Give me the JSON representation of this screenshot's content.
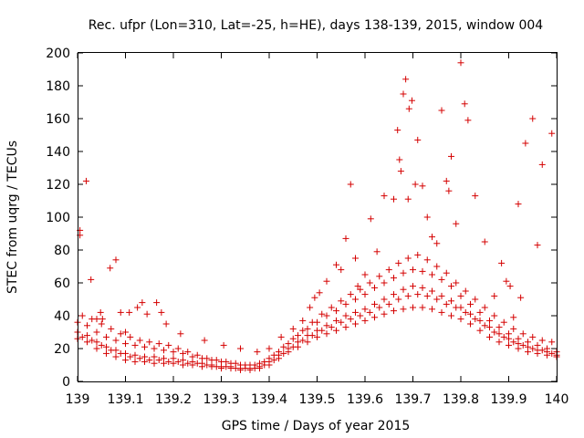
{
  "chart_data": {
    "type": "scatter",
    "title": "Rec. ufpr (Lon=310, Lat=-25, h=HE), days 138-139, 2015, window 004",
    "xlabel": "GPS time / Days of year 2015",
    "ylabel": "STEC from uqrg / TECUs",
    "xlim": [
      139,
      140
    ],
    "ylim": [
      0,
      200
    ],
    "x_ticks": [
      "139",
      "139.1",
      "139.2",
      "139.3",
      "139.4",
      "139.5",
      "139.6",
      "139.7",
      "139.8",
      "139.9",
      "140"
    ],
    "y_ticks": [
      "0",
      "20",
      "40",
      "60",
      "80",
      "100",
      "120",
      "140",
      "160",
      "180",
      "200"
    ],
    "grid": false,
    "marker_color": "#d40000",
    "series": [
      {
        "x": [
          139.005,
          139.005,
          139.018,
          139.028,
          139.04,
          139.048,
          139.068,
          139.08,
          139.052,
          139.09,
          139.1,
          139.108,
          139.125,
          139.135,
          139.145,
          139.165,
          139.175,
          139.185,
          139.215,
          139.265,
          139.305,
          139.34,
          139.375,
          139.4,
          139.425,
          139.45,
          139.47,
          139.485,
          139.495,
          139.505,
          139.52,
          139.54,
          139.55,
          139.56,
          139.57,
          139.58,
          139.585,
          139.6,
          139.612,
          139.625,
          139.64,
          139.66,
          139.668,
          139.672,
          139.675,
          139.68,
          139.685,
          139.69,
          139.692,
          139.698,
          139.705,
          139.71,
          139.72,
          139.73,
          139.74,
          139.75,
          139.76,
          139.77,
          139.775,
          139.78,
          139.79,
          139.8,
          139.808,
          139.815,
          139.83,
          139.85,
          139.87,
          139.885,
          139.895,
          139.903,
          139.91,
          139.92,
          139.925,
          139.935,
          139.95,
          139.96,
          139.97,
          139.99
        ],
        "y": [
          92,
          89,
          122,
          62,
          38,
          42,
          69,
          74,
          38,
          42,
          30,
          42,
          45,
          48,
          41,
          48,
          42,
          35,
          29,
          25,
          22,
          20,
          18,
          20,
          27,
          32,
          37,
          45,
          51,
          54,
          61,
          71,
          68,
          87,
          120,
          75,
          58,
          65,
          99,
          79,
          113,
          111,
          153,
          135,
          128,
          175,
          184,
          111,
          166,
          171,
          120,
          147,
          119,
          100,
          88,
          84,
          165,
          122,
          116,
          137,
          96,
          194,
          169,
          159,
          113,
          85,
          52,
          72,
          61,
          58,
          39,
          108,
          51,
          145,
          160,
          83,
          132,
          151
        ]
      },
      {
        "x": [
          139.0,
          139.02,
          139.04,
          139.06,
          139.08,
          139.1,
          139.12,
          139.14,
          139.16,
          139.18,
          139.2,
          139.22,
          139.24,
          139.26,
          139.28,
          139.3,
          139.32,
          139.34,
          139.36,
          139.38,
          139.4,
          139.42,
          139.44,
          139.46,
          139.48,
          139.5,
          139.52,
          139.54,
          139.56,
          139.58,
          139.6,
          139.62,
          139.64,
          139.66,
          139.68,
          139.7,
          139.72,
          139.74,
          139.76,
          139.78,
          139.8,
          139.82,
          139.84,
          139.86,
          139.88,
          139.9,
          139.92,
          139.94,
          139.96,
          139.98,
          140.0
        ],
        "y": [
          36,
          34,
          30,
          27,
          25,
          23,
          22,
          21,
          20,
          19,
          18,
          17,
          15,
          14,
          13,
          12,
          11,
          10,
          10,
          11,
          14,
          18,
          23,
          28,
          32,
          36,
          40,
          43,
          47,
          50,
          53,
          57,
          60,
          63,
          66,
          68,
          67,
          65,
          62,
          58,
          52,
          47,
          42,
          37,
          33,
          29,
          26,
          24,
          22,
          20,
          18
        ]
      },
      {
        "x": [
          139.0,
          139.02,
          139.04,
          139.06,
          139.08,
          139.1,
          139.12,
          139.14,
          139.16,
          139.18,
          139.2,
          139.22,
          139.24,
          139.26,
          139.28,
          139.3,
          139.32,
          139.34,
          139.36,
          139.38,
          139.4,
          139.42,
          139.44,
          139.46,
          139.48,
          139.5,
          139.52,
          139.54,
          139.56,
          139.58,
          139.6,
          139.62,
          139.64,
          139.66,
          139.68,
          139.7,
          139.72,
          139.74,
          139.76,
          139.78,
          139.8,
          139.82,
          139.84,
          139.86,
          139.88,
          139.9,
          139.92,
          139.94,
          139.96,
          139.98,
          140.0
        ],
        "y": [
          30,
          28,
          24,
          21,
          19,
          17,
          16,
          15,
          15,
          14,
          14,
          13,
          12,
          11,
          10,
          9,
          9,
          8,
          8,
          9,
          12,
          16,
          20,
          24,
          28,
          31,
          34,
          37,
          40,
          42,
          44,
          47,
          50,
          53,
          56,
          58,
          57,
          55,
          52,
          49,
          45,
          41,
          37,
          33,
          29,
          26,
          23,
          21,
          19,
          18,
          16
        ]
      },
      {
        "x": [
          139.0,
          139.02,
          139.04,
          139.06,
          139.08,
          139.1,
          139.12,
          139.14,
          139.16,
          139.18,
          139.2,
          139.22,
          139.24,
          139.26,
          139.28,
          139.3,
          139.32,
          139.34,
          139.36,
          139.38,
          139.4,
          139.42,
          139.44,
          139.46,
          139.48,
          139.5,
          139.52,
          139.54,
          139.56,
          139.58,
          139.6,
          139.62,
          139.64,
          139.66,
          139.68,
          139.7,
          139.72,
          139.74,
          139.76,
          139.78,
          139.8,
          139.82,
          139.84,
          139.86,
          139.88,
          139.9,
          139.92,
          139.94,
          139.96,
          139.98,
          140.0
        ],
        "y": [
          26,
          24,
          20,
          17,
          15,
          13,
          12,
          12,
          11,
          11,
          11,
          10,
          10,
          9,
          9,
          8,
          8,
          7,
          7,
          8,
          10,
          14,
          18,
          21,
          24,
          27,
          29,
          31,
          33,
          35,
          37,
          39,
          41,
          43,
          44,
          45,
          45,
          44,
          42,
          40,
          38,
          35,
          31,
          27,
          24,
          22,
          20,
          18,
          17,
          16,
          15
        ]
      },
      {
        "x": [
          139.01,
          139.03,
          139.05,
          139.07,
          139.09,
          139.11,
          139.13,
          139.15,
          139.17,
          139.19,
          139.21,
          139.23,
          139.25,
          139.27,
          139.29,
          139.31,
          139.33,
          139.35,
          139.37,
          139.39,
          139.41,
          139.43,
          139.45,
          139.47,
          139.49,
          139.51,
          139.53,
          139.55,
          139.57,
          139.59,
          139.61,
          139.63,
          139.65,
          139.67,
          139.69,
          139.71,
          139.73,
          139.75,
          139.77,
          139.79,
          139.81,
          139.83,
          139.85,
          139.87,
          139.89,
          139.91,
          139.93,
          139.95,
          139.97,
          139.99
        ],
        "y": [
          40,
          38,
          35,
          32,
          29,
          27,
          25,
          24,
          23,
          22,
          20,
          18,
          16,
          14,
          13,
          12,
          11,
          10,
          10,
          12,
          16,
          21,
          26,
          31,
          36,
          41,
          45,
          49,
          53,
          56,
          60,
          64,
          68,
          72,
          75,
          77,
          74,
          70,
          66,
          60,
          55,
          50,
          45,
          40,
          36,
          32,
          29,
          27,
          25,
          24
        ]
      },
      {
        "x": [
          139.01,
          139.03,
          139.05,
          139.07,
          139.09,
          139.11,
          139.13,
          139.15,
          139.17,
          139.19,
          139.21,
          139.23,
          139.25,
          139.27,
          139.29,
          139.31,
          139.33,
          139.35,
          139.37,
          139.39,
          139.41,
          139.43,
          139.45,
          139.47,
          139.49,
          139.51,
          139.53,
          139.55,
          139.57,
          139.59,
          139.61,
          139.63,
          139.65,
          139.67,
          139.69,
          139.71,
          139.73,
          139.75,
          139.77,
          139.79,
          139.81,
          139.83,
          139.85,
          139.87,
          139.89,
          139.91,
          139.93,
          139.95,
          139.97,
          139.99
        ],
        "y": [
          27,
          25,
          22,
          19,
          17,
          15,
          14,
          13,
          13,
          12,
          12,
          11,
          11,
          10,
          9,
          9,
          8,
          8,
          8,
          10,
          13,
          17,
          21,
          25,
          28,
          31,
          33,
          36,
          38,
          40,
          42,
          45,
          47,
          50,
          52,
          53,
          52,
          50,
          47,
          45,
          42,
          38,
          34,
          30,
          27,
          24,
          22,
          20,
          19,
          17
        ]
      }
    ]
  }
}
